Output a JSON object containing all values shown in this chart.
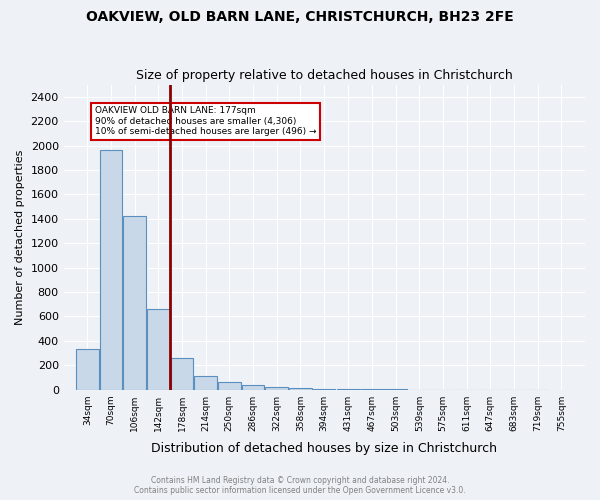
{
  "title": "OAKVIEW, OLD BARN LANE, CHRISTCHURCH, BH23 2FE",
  "subtitle": "Size of property relative to detached houses in Christchurch",
  "xlabel": "Distribution of detached houses by size in Christchurch",
  "ylabel": "Number of detached properties",
  "footer_line1": "Contains HM Land Registry data © Crown copyright and database right 2024.",
  "footer_line2": "Contains public sector information licensed under the Open Government Licence v3.0.",
  "bar_color": "#c8d8e8",
  "bar_edge_color": "#5a8fc0",
  "highlight_line_color": "#8b0000",
  "annotation_box_color": "#cc0000",
  "annotation_text": "OAKVIEW OLD BARN LANE: 177sqm\n90% of detached houses are smaller (4,306)\n10% of semi-detached houses are larger (496) →",
  "property_size": 177,
  "bins": [
    34,
    70,
    106,
    142,
    178,
    214,
    250,
    286,
    322,
    358,
    394,
    431,
    467,
    503,
    539,
    575,
    611,
    647,
    683,
    719,
    755
  ],
  "bin_labels": [
    "34sqm",
    "70sqm",
    "106sqm",
    "142sqm",
    "178sqm",
    "214sqm",
    "250sqm",
    "286sqm",
    "322sqm",
    "358sqm",
    "394sqm",
    "431sqm",
    "467sqm",
    "503sqm",
    "539sqm",
    "575sqm",
    "611sqm",
    "647sqm",
    "683sqm",
    "719sqm",
    "755sqm"
  ],
  "values": [
    330,
    1960,
    1420,
    660,
    260,
    110,
    65,
    35,
    20,
    12,
    8,
    5,
    3,
    2,
    1,
    1,
    1,
    0,
    0,
    0
  ],
  "ylim": [
    0,
    2500
  ],
  "yticks": [
    0,
    200,
    400,
    600,
    800,
    1000,
    1200,
    1400,
    1600,
    1800,
    2000,
    2200,
    2400
  ],
  "bg_color": "#eef2f7",
  "plot_bg_color": "#eef2f7"
}
